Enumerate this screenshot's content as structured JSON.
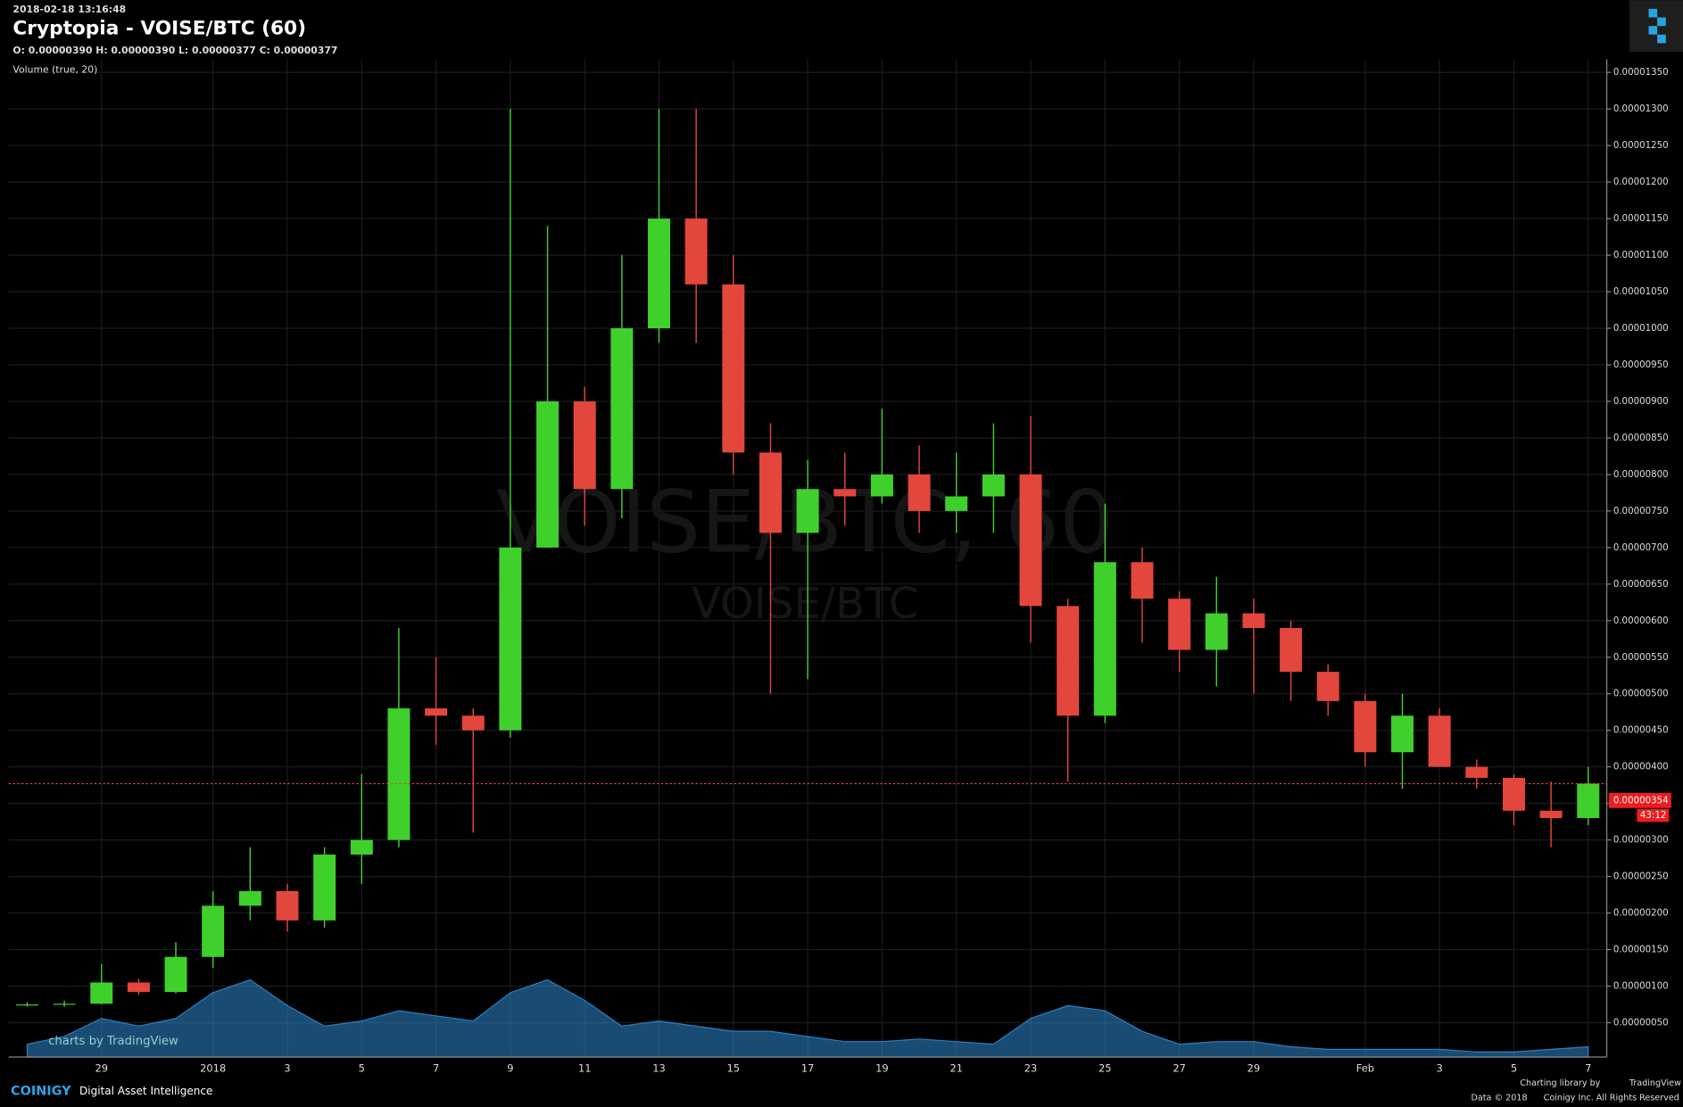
{
  "chart_data": {
    "type": "candlestick",
    "timestamp": "2018-02-18 13:16:48",
    "title": "Cryptopia - VOISE/BTC (60)",
    "ohlc_text": "O: 0.00000390 H: 0.00000390 L: 0.00000377 C: 0.00000377",
    "volume_label": "Volume (true, 20)",
    "watermark": "VOISE/BTC, 60",
    "watermark_sub": "VOISE/BTC",
    "categories": [
      null,
      null,
      "29",
      null,
      null,
      "2018",
      null,
      "3",
      null,
      "5",
      null,
      "7",
      null,
      "9",
      null,
      "11",
      null,
      "13",
      null,
      "15",
      null,
      "17",
      null,
      "19",
      null,
      "21",
      null,
      "23",
      null,
      "25",
      null,
      "27",
      null,
      "29",
      null,
      null,
      "Feb",
      null,
      "3",
      null,
      "5",
      null,
      "7"
    ],
    "open": [
      7.5e-07,
      7.5e-07,
      7.6e-07,
      1.05e-06,
      9.2e-07,
      1.4e-06,
      2.1e-06,
      2.3e-06,
      1.9e-06,
      2.8e-06,
      3e-06,
      4.8e-06,
      4.7e-06,
      4.5e-06,
      7e-06,
      9e-06,
      7.8e-06,
      1e-05,
      1.15e-05,
      1.06e-05,
      8.3e-06,
      7.2e-06,
      7.8e-06,
      7.7e-06,
      8e-06,
      7.5e-06,
      7.7e-06,
      8e-06,
      6.2e-06,
      4.7e-06,
      6.8e-06,
      6.3e-06,
      5.6e-06,
      6.1e-06,
      5.9e-06,
      5.3e-06,
      4.9e-06,
      4.2e-06,
      4.7e-06,
      4e-06,
      3.85e-06,
      3.4e-06,
      3.3e-06
    ],
    "high": [
      7.8e-07,
      8e-07,
      1.3e-06,
      1.1e-06,
      1.6e-06,
      2.3e-06,
      2.9e-06,
      2.4e-06,
      2.9e-06,
      3.9e-06,
      5.9e-06,
      5.5e-06,
      4.8e-06,
      1.3e-05,
      1.14e-05,
      9.2e-06,
      1.1e-05,
      1.3e-05,
      1.3e-05,
      1.1e-05,
      8.7e-06,
      8.2e-06,
      8.3e-06,
      8.9e-06,
      8.4e-06,
      8.3e-06,
      8.7e-06,
      8.8e-06,
      6.3e-06,
      7.6e-06,
      7e-06,
      6.4e-06,
      6.6e-06,
      6.3e-06,
      6e-06,
      5.4e-06,
      5e-06,
      5e-06,
      4.8e-06,
      4.1e-06,
      3.9e-06,
      3.8e-06,
      4e-06
    ],
    "low": [
      7.2e-07,
      7.2e-07,
      7.5e-07,
      8.8e-07,
      9e-07,
      1.25e-06,
      1.9e-06,
      1.75e-06,
      1.8e-06,
      2.4e-06,
      2.9e-06,
      4.3e-06,
      3.1e-06,
      4.4e-06,
      7e-06,
      7.3e-06,
      7.4e-06,
      9.8e-06,
      9.8e-06,
      8e-06,
      5e-06,
      5.2e-06,
      7.3e-06,
      7.6e-06,
      7.2e-06,
      7.2e-06,
      7.2e-06,
      5.7e-06,
      3.8e-06,
      4.6e-06,
      5.7e-06,
      5.3e-06,
      5.1e-06,
      5e-06,
      4.9e-06,
      4.7e-06,
      4e-06,
      3.7e-06,
      4e-06,
      3.7e-06,
      3.2e-06,
      2.9e-06,
      3.2e-06
    ],
    "close": [
      7.5e-07,
      7.6e-07,
      1.05e-06,
      9.2e-07,
      1.4e-06,
      2.1e-06,
      2.3e-06,
      1.9e-06,
      2.8e-06,
      3e-06,
      4.8e-06,
      4.7e-06,
      4.5e-06,
      7e-06,
      9e-06,
      7.8e-06,
      1e-05,
      1.15e-05,
      1.06e-05,
      8.3e-06,
      7.2e-06,
      7.8e-06,
      7.7e-06,
      8e-06,
      7.5e-06,
      7.7e-06,
      8e-06,
      6.2e-06,
      4.7e-06,
      6.8e-06,
      6.3e-06,
      5.6e-06,
      6.1e-06,
      5.9e-06,
      5.3e-06,
      4.9e-06,
      4.2e-06,
      4.7e-06,
      4e-06,
      3.85e-06,
      3.4e-06,
      3.3e-06,
      3.77e-06
    ],
    "up_color": "#3fd02c",
    "down_color": "#e2463c",
    "volume": {
      "values": [
        5,
        8,
        15,
        12,
        15,
        25,
        30,
        20,
        12,
        14,
        18,
        16,
        14,
        25,
        30,
        22,
        12,
        14,
        12,
        10,
        10,
        8,
        6,
        6,
        7,
        6,
        5,
        15,
        20,
        18,
        10,
        5,
        6,
        6,
        4,
        3,
        3,
        3,
        3,
        2,
        2,
        3,
        4
      ],
      "ylim": [
        0,
        100
      ],
      "color": "#2b7fc0"
    },
    "ylim": [
      3e-08,
      1.368e-05
    ],
    "yticks": [
      {
        "value": 5e-07,
        "label": "0.00000050"
      },
      {
        "value": 1e-06,
        "label": "0.00000100"
      },
      {
        "value": 1.5e-06,
        "label": "0.00000150"
      },
      {
        "value": 2e-06,
        "label": "0.00000200"
      },
      {
        "value": 2.5e-06,
        "label": "0.00000250"
      },
      {
        "value": 3e-06,
        "label": "0.00000300"
      },
      {
        "value": 3.5e-06,
        "label": "0.00000350"
      },
      {
        "value": 4e-06,
        "label": "0.00000400"
      },
      {
        "value": 4.5e-06,
        "label": "0.00000450"
      },
      {
        "value": 5e-06,
        "label": "0.00000500"
      },
      {
        "value": 5.5e-06,
        "label": "0.00000550"
      },
      {
        "value": 6e-06,
        "label": "0.00000600"
      },
      {
        "value": 6.5e-06,
        "label": "0.00000650"
      },
      {
        "value": 7e-06,
        "label": "0.00000700"
      },
      {
        "value": 7.5e-06,
        "label": "0.00000750"
      },
      {
        "value": 8e-06,
        "label": "0.00000800"
      },
      {
        "value": 8.5e-06,
        "label": "0.00000850"
      },
      {
        "value": 9e-06,
        "label": "0.00000900"
      },
      {
        "value": 9.5e-06,
        "label": "0.00000950"
      },
      {
        "value": 1e-05,
        "label": "0.00001000"
      },
      {
        "value": 1.05e-05,
        "label": "0.00001050"
      },
      {
        "value": 1.1e-05,
        "label": "0.00001100"
      },
      {
        "value": 1.15e-05,
        "label": "0.00001150"
      },
      {
        "value": 1.2e-05,
        "label": "0.00001200"
      },
      {
        "value": 1.25e-05,
        "label": "0.00001250"
      },
      {
        "value": 1.3e-05,
        "label": "0.00001300"
      },
      {
        "value": 1.35e-05,
        "label": "0.00001350"
      }
    ],
    "grid": true,
    "price_tag": {
      "value": 3.54e-06,
      "label": "0.00000354"
    },
    "countdown": "43:12",
    "footer": {
      "brand": "COINIGY",
      "tagline": "Digital Asset Intelligence",
      "library": "Charting library by",
      "tradingview": "TradingView",
      "data": "Data © 2018",
      "rights": "Coinigy Inc. All Rights Reserved",
      "charts_by": "charts by TradingView"
    }
  }
}
